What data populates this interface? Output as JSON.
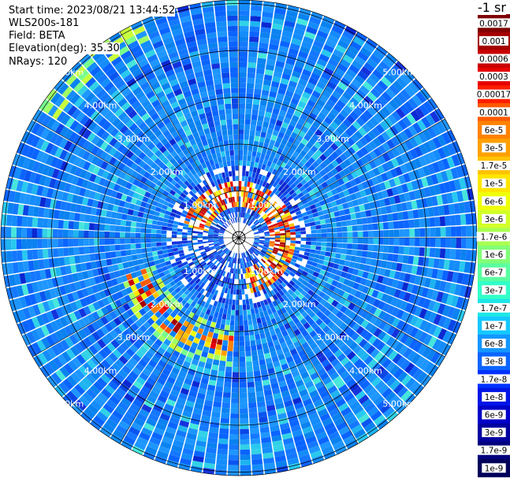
{
  "header": {
    "start_time": "Start time: 2023/08/21 13:44:52",
    "instrument": "WLS200s-181",
    "field": "Field: BETA",
    "elevation": "Elevation(deg): 35.30",
    "nrays": "NRays: 120"
  },
  "unit_title": "-1 sr",
  "range_rings": [
    "1.00km",
    "2.00km",
    "3.00km",
    "4.00km",
    "5.00km"
  ],
  "colorbar": {
    "labels": [
      "0.0017",
      "0.001",
      "0.0006",
      "0.0003",
      "0.00017",
      "0.0001",
      "6e-5",
      "3e-5",
      "1.7e-5",
      "1e-5",
      "6e-6",
      "3e-6",
      "1.7e-6",
      "1e-6",
      "6e-7",
      "3e-7",
      "1.7e-7",
      "1e-7",
      "6e-8",
      "3e-8",
      "1.7e-8",
      "1e-8",
      "6e-9",
      "3e-9",
      "1.7e-9",
      "1e-9"
    ],
    "colors": [
      "#7f0000",
      "#a50000",
      "#c80000",
      "#e60000",
      "#ff1e00",
      "#ff5a00",
      "#ff8200",
      "#ffa000",
      "#ffc400",
      "#ffe600",
      "#f0ff0a",
      "#d2ff28",
      "#aaff50",
      "#82ff78",
      "#5affa0",
      "#32ffc8",
      "#1ee6e6",
      "#14c8ff",
      "#1496ff",
      "#0a64ff",
      "#0032ff",
      "#0014e6",
      "#0000c8",
      "#0000a0",
      "#00007d",
      "#00005a"
    ]
  },
  "background_color": "#ffffff",
  "grid_color": "#000000"
}
